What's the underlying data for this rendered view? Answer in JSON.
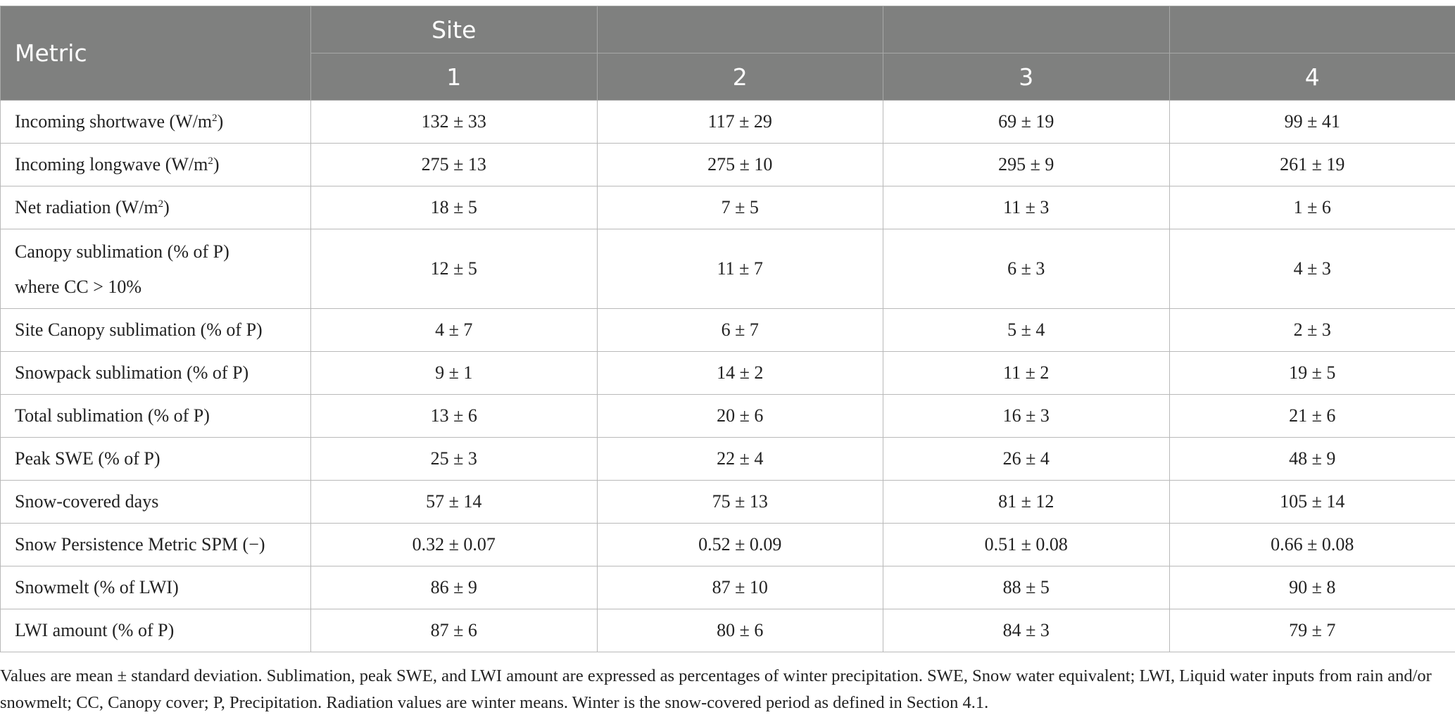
{
  "table": {
    "header": {
      "metric_label": "Metric",
      "site_label": "Site",
      "sites": [
        "1",
        "2",
        "3",
        "4"
      ]
    },
    "rows": [
      {
        "label": "Incoming shortwave (W/m",
        "sup": "2",
        "suffix": ")",
        "values": [
          "132 ± 33",
          "117 ± 29",
          "69 ± 19",
          "99 ± 41"
        ]
      },
      {
        "label": "Incoming longwave (W/m",
        "sup": "2",
        "suffix": ")",
        "values": [
          "275 ± 13",
          "275 ± 10",
          "295 ± 9",
          "261 ± 19"
        ]
      },
      {
        "label": "Net radiation (W/m",
        "sup": "2",
        "suffix": ")",
        "values": [
          "18 ± 5",
          "7 ± 5",
          "11 ± 3",
          "1 ± 6"
        ]
      },
      {
        "label": "Canopy sublimation (% of P)",
        "label2": "where CC > 10%",
        "values": [
          "12 ± 5",
          "11 ± 7",
          "6 ± 3",
          "4 ± 3"
        ]
      },
      {
        "label": "Site Canopy sublimation (% of P)",
        "values": [
          "4 ± 7",
          "6 ± 7",
          "5 ± 4",
          "2 ± 3"
        ]
      },
      {
        "label": "Snowpack sublimation (% of P)",
        "values": [
          "9 ± 1",
          "14 ± 2",
          "11 ± 2",
          "19 ± 5"
        ]
      },
      {
        "label": "Total sublimation (% of P)",
        "values": [
          "13 ± 6",
          "20 ± 6",
          "16 ± 3",
          "21 ± 6"
        ]
      },
      {
        "label": "Peak SWE (% of P)",
        "values": [
          "25 ± 3",
          "22 ± 4",
          "26 ± 4",
          "48 ± 9"
        ]
      },
      {
        "label": "Snow-covered days",
        "values": [
          "57 ± 14",
          "75 ± 13",
          "81 ± 12",
          "105 ± 14"
        ]
      },
      {
        "label": "Snow Persistence Metric SPM (−)",
        "values": [
          "0.32 ± 0.07",
          "0.52 ± 0.09",
          "0.51 ± 0.08",
          "0.66 ± 0.08"
        ]
      },
      {
        "label": "Snowmelt (% of LWI)",
        "values": [
          "86 ± 9",
          "87 ± 10",
          "88 ± 5",
          "90 ± 8"
        ]
      },
      {
        "label": "LWI amount (% of P)",
        "values": [
          "87 ± 6",
          "80 ± 6",
          "84 ± 3",
          "79 ± 7"
        ]
      }
    ]
  },
  "footnote": "Values are mean ± standard deviation. Sublimation, peak SWE, and LWI amount are expressed as percentages of winter precipitation. SWE, Snow water equivalent; LWI, Liquid water inputs from rain and/or snowmelt; CC, Canopy cover; P, Precipitation. Radiation values are winter means. Winter is the snow-covered period as defined in Section 4.1.",
  "colors": {
    "header_bg": "#7f807f",
    "header_text": "#ffffff",
    "border": "#b9b9b9"
  }
}
